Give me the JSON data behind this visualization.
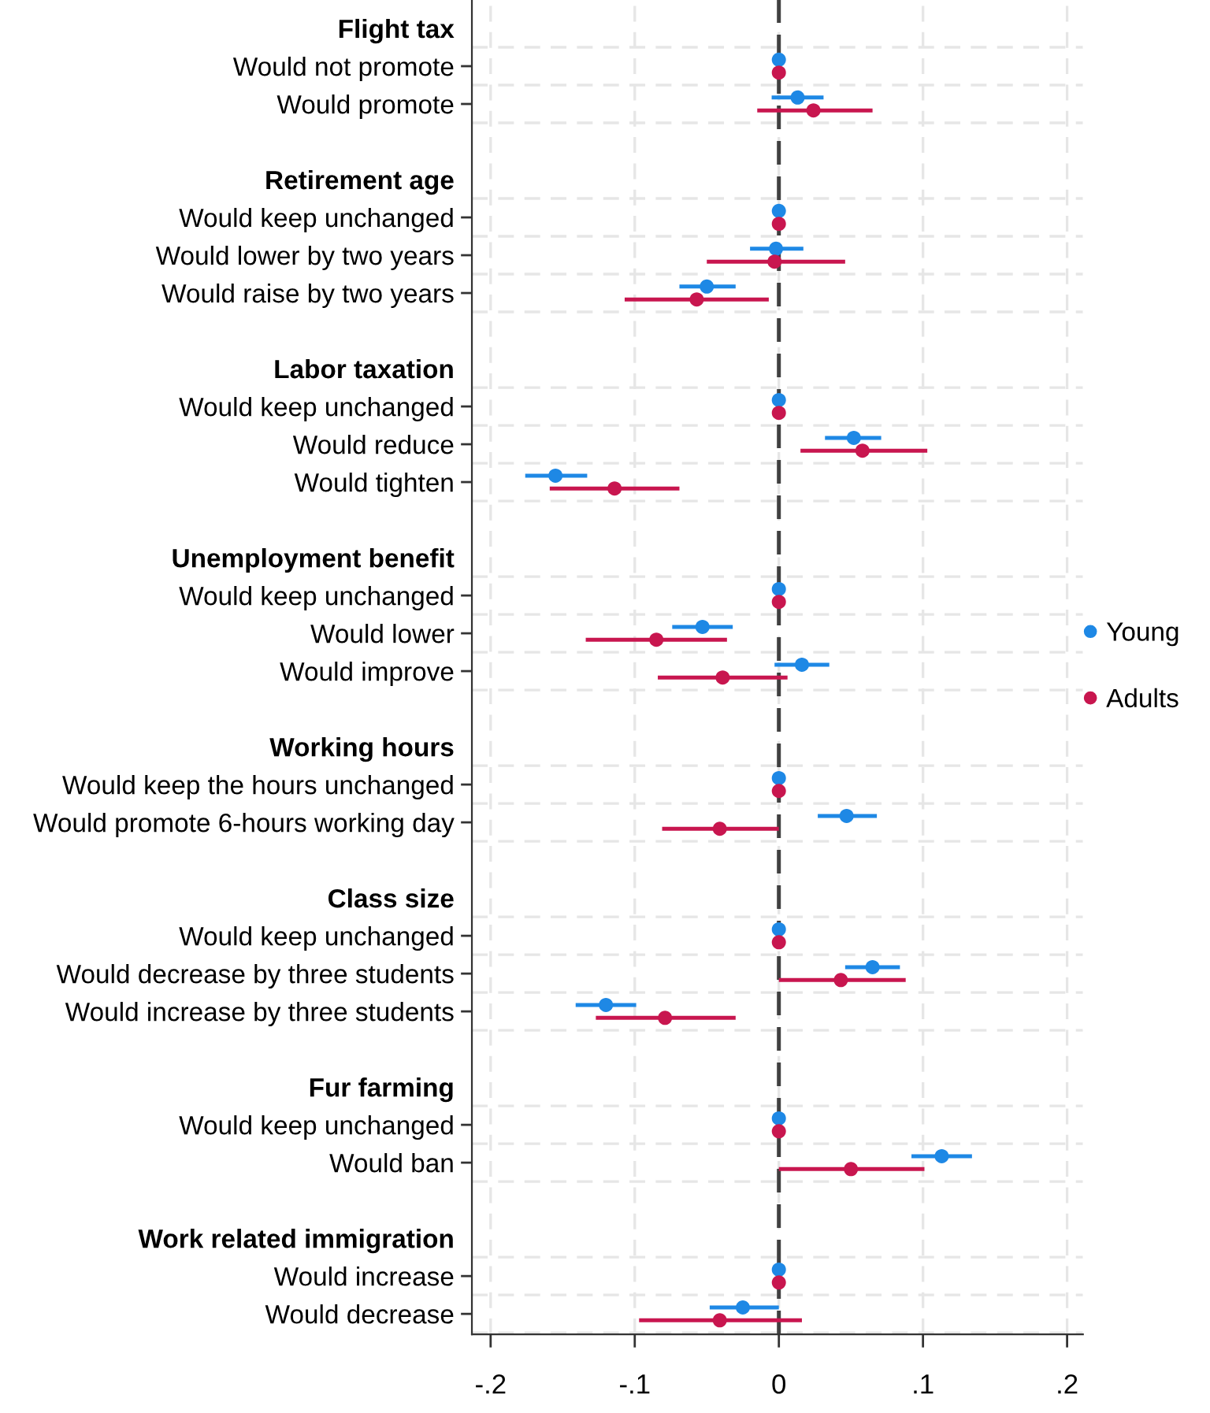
{
  "chart_data": {
    "type": "scatter",
    "orientation": "horizontal",
    "categories": [
      "Flight tax",
      "Would not promote",
      "Would promote",
      null,
      "Retirement age",
      "Would keep unchanged",
      "Would lower by two years",
      "Would raise by two years",
      null,
      "Labor taxation",
      "Would keep unchanged",
      "Would reduce",
      "Would tighten",
      null,
      "Unemployment benefit",
      "Would keep unchanged",
      "Would lower",
      "Would improve",
      null,
      "Working hours",
      "Would keep the hours unchanged",
      "Would promote 6-hours working day",
      null,
      "Class size",
      "Would keep unchanged",
      "Would decrease by three students",
      "Would increase by three students",
      null,
      "Fur farming",
      "Would keep unchanged",
      "Would ban",
      null,
      "Work related immigration",
      "Would increase",
      "Would decrease"
    ],
    "series": [
      {
        "name": "Young",
        "color": "#1e88e5",
        "values": [
          null,
          0,
          0.013,
          null,
          null,
          0,
          -0.002,
          -0.05,
          null,
          null,
          0,
          0.052,
          -0.155,
          null,
          null,
          0,
          -0.053,
          0.016,
          null,
          null,
          0,
          0.047,
          null,
          null,
          0,
          0.065,
          -0.12,
          null,
          null,
          0,
          0.113,
          null,
          null,
          0,
          -0.025
        ],
        "errors": [
          null,
          null,
          [
            -0.005,
            0.031
          ],
          null,
          null,
          null,
          [
            -0.02,
            0.017
          ],
          [
            -0.069,
            -0.03
          ],
          null,
          null,
          null,
          [
            0.032,
            0.071
          ],
          [
            -0.176,
            -0.133
          ],
          null,
          null,
          null,
          [
            -0.074,
            -0.032
          ],
          [
            -0.003,
            0.035
          ],
          null,
          null,
          null,
          [
            0.027,
            0.068
          ],
          null,
          null,
          null,
          [
            0.046,
            0.084
          ],
          [
            -0.141,
            -0.099
          ],
          null,
          null,
          null,
          [
            0.092,
            0.134
          ],
          null,
          null,
          null,
          [
            -0.048,
            0
          ]
        ]
      },
      {
        "name": "Adults",
        "color": "#c8164f",
        "values": [
          null,
          0,
          0.024,
          null,
          null,
          0,
          -0.003,
          -0.057,
          null,
          null,
          0,
          0.058,
          -0.114,
          null,
          null,
          0,
          -0.085,
          -0.039,
          null,
          null,
          0,
          -0.041,
          null,
          null,
          0,
          0.043,
          -0.079,
          null,
          null,
          0,
          0.05,
          null,
          null,
          0,
          -0.041
        ],
        "errors": [
          null,
          null,
          [
            -0.015,
            0.065
          ],
          null,
          null,
          null,
          [
            -0.05,
            0.046
          ],
          [
            -0.107,
            -0.007
          ],
          null,
          null,
          null,
          [
            0.015,
            0.103
          ],
          [
            -0.159,
            -0.069
          ],
          null,
          null,
          null,
          [
            -0.134,
            -0.036
          ],
          [
            -0.084,
            0.006
          ],
          null,
          null,
          null,
          [
            -0.081,
            0
          ],
          null,
          null,
          null,
          [
            0,
            0.088
          ],
          [
            -0.127,
            -0.03
          ],
          null,
          null,
          null,
          [
            0,
            0.101
          ],
          null,
          null,
          null,
          [
            -0.097,
            0.016
          ]
        ]
      }
    ],
    "xlim": [
      -0.213,
      0.211
    ],
    "xticks": [
      {
        "value": -0.2,
        "label": "-.2"
      },
      {
        "value": -0.1,
        "label": "-.1"
      },
      {
        "value": 0,
        "label": "0"
      },
      {
        "value": 0.1,
        "label": ".1"
      },
      {
        "value": 0.2,
        "label": ".2"
      }
    ],
    "ref_lines": [
      {
        "axis": "x",
        "value": 0,
        "color": "#404040",
        "line_style": "dashed"
      }
    ],
    "grid": true,
    "legend": "right",
    "marker": "circle"
  }
}
